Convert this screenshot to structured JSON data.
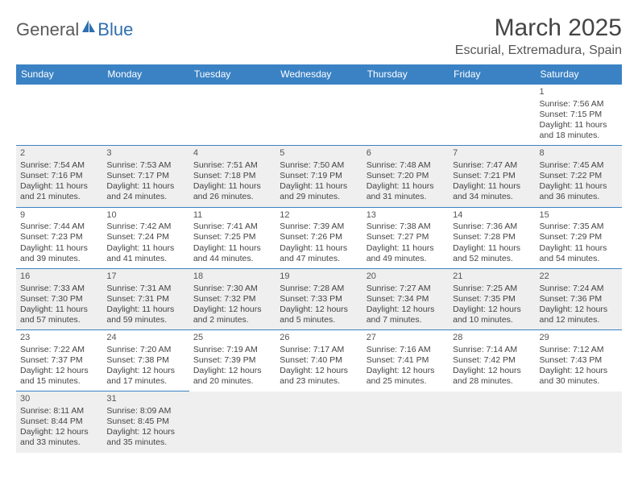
{
  "logo": {
    "text1": "General",
    "text2": "Blue",
    "color1": "#5a5a5a",
    "color2": "#2e6fb0",
    "sail_fill": "#2e6fb0"
  },
  "header": {
    "title": "March 2025",
    "location": "Escurial, Extremadura, Spain"
  },
  "colors": {
    "header_bg": "#3b82c4",
    "header_fg": "#ffffff",
    "shade_bg": "#efefef",
    "rule": "#3b82c4",
    "text": "#444444"
  },
  "day_labels": [
    "Sunday",
    "Monday",
    "Tuesday",
    "Wednesday",
    "Thursday",
    "Friday",
    "Saturday"
  ],
  "weeks": [
    [
      null,
      null,
      null,
      null,
      null,
      null,
      {
        "n": "1",
        "sr": "7:56 AM",
        "ss": "7:15 PM",
        "dh": "11",
        "dm": "18"
      }
    ],
    [
      {
        "n": "2",
        "sr": "7:54 AM",
        "ss": "7:16 PM",
        "dh": "11",
        "dm": "21"
      },
      {
        "n": "3",
        "sr": "7:53 AM",
        "ss": "7:17 PM",
        "dh": "11",
        "dm": "24"
      },
      {
        "n": "4",
        "sr": "7:51 AM",
        "ss": "7:18 PM",
        "dh": "11",
        "dm": "26"
      },
      {
        "n": "5",
        "sr": "7:50 AM",
        "ss": "7:19 PM",
        "dh": "11",
        "dm": "29"
      },
      {
        "n": "6",
        "sr": "7:48 AM",
        "ss": "7:20 PM",
        "dh": "11",
        "dm": "31"
      },
      {
        "n": "7",
        "sr": "7:47 AM",
        "ss": "7:21 PM",
        "dh": "11",
        "dm": "34"
      },
      {
        "n": "8",
        "sr": "7:45 AM",
        "ss": "7:22 PM",
        "dh": "11",
        "dm": "36"
      }
    ],
    [
      {
        "n": "9",
        "sr": "7:44 AM",
        "ss": "7:23 PM",
        "dh": "11",
        "dm": "39"
      },
      {
        "n": "10",
        "sr": "7:42 AM",
        "ss": "7:24 PM",
        "dh": "11",
        "dm": "41"
      },
      {
        "n": "11",
        "sr": "7:41 AM",
        "ss": "7:25 PM",
        "dh": "11",
        "dm": "44"
      },
      {
        "n": "12",
        "sr": "7:39 AM",
        "ss": "7:26 PM",
        "dh": "11",
        "dm": "47"
      },
      {
        "n": "13",
        "sr": "7:38 AM",
        "ss": "7:27 PM",
        "dh": "11",
        "dm": "49"
      },
      {
        "n": "14",
        "sr": "7:36 AM",
        "ss": "7:28 PM",
        "dh": "11",
        "dm": "52"
      },
      {
        "n": "15",
        "sr": "7:35 AM",
        "ss": "7:29 PM",
        "dh": "11",
        "dm": "54"
      }
    ],
    [
      {
        "n": "16",
        "sr": "7:33 AM",
        "ss": "7:30 PM",
        "dh": "11",
        "dm": "57"
      },
      {
        "n": "17",
        "sr": "7:31 AM",
        "ss": "7:31 PM",
        "dh": "11",
        "dm": "59"
      },
      {
        "n": "18",
        "sr": "7:30 AM",
        "ss": "7:32 PM",
        "dh": "12",
        "dm": "2"
      },
      {
        "n": "19",
        "sr": "7:28 AM",
        "ss": "7:33 PM",
        "dh": "12",
        "dm": "5"
      },
      {
        "n": "20",
        "sr": "7:27 AM",
        "ss": "7:34 PM",
        "dh": "12",
        "dm": "7"
      },
      {
        "n": "21",
        "sr": "7:25 AM",
        "ss": "7:35 PM",
        "dh": "12",
        "dm": "10"
      },
      {
        "n": "22",
        "sr": "7:24 AM",
        "ss": "7:36 PM",
        "dh": "12",
        "dm": "12"
      }
    ],
    [
      {
        "n": "23",
        "sr": "7:22 AM",
        "ss": "7:37 PM",
        "dh": "12",
        "dm": "15"
      },
      {
        "n": "24",
        "sr": "7:20 AM",
        "ss": "7:38 PM",
        "dh": "12",
        "dm": "17"
      },
      {
        "n": "25",
        "sr": "7:19 AM",
        "ss": "7:39 PM",
        "dh": "12",
        "dm": "20"
      },
      {
        "n": "26",
        "sr": "7:17 AM",
        "ss": "7:40 PM",
        "dh": "12",
        "dm": "23"
      },
      {
        "n": "27",
        "sr": "7:16 AM",
        "ss": "7:41 PM",
        "dh": "12",
        "dm": "25"
      },
      {
        "n": "28",
        "sr": "7:14 AM",
        "ss": "7:42 PM",
        "dh": "12",
        "dm": "28"
      },
      {
        "n": "29",
        "sr": "7:12 AM",
        "ss": "7:43 PM",
        "dh": "12",
        "dm": "30"
      }
    ],
    [
      {
        "n": "30",
        "sr": "8:11 AM",
        "ss": "8:44 PM",
        "dh": "12",
        "dm": "33"
      },
      {
        "n": "31",
        "sr": "8:09 AM",
        "ss": "8:45 PM",
        "dh": "12",
        "dm": "35"
      },
      null,
      null,
      null,
      null,
      null
    ]
  ],
  "labels": {
    "sunrise": "Sunrise:",
    "sunset": "Sunset:",
    "daylight1": "Daylight:",
    "hours": "hours",
    "and": "and",
    "minutes": "minutes."
  }
}
